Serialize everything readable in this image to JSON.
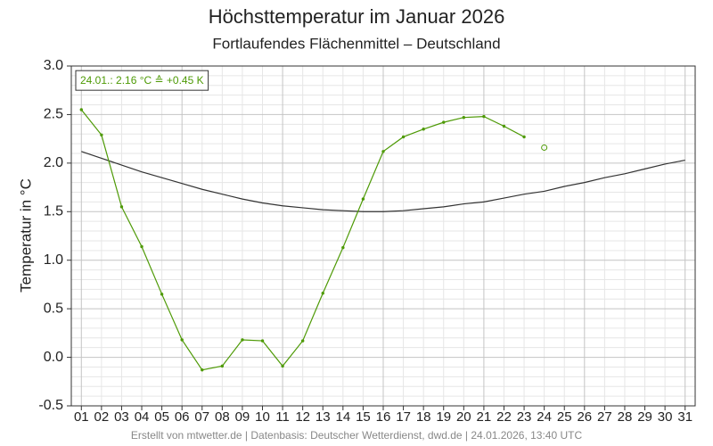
{
  "chart_data": {
    "type": "line",
    "title": "Höchsttemperatur im Januar 2026",
    "subtitle": "Fortlaufendes Flächenmittel – Deutschland",
    "ylabel": "Temperatur in °C",
    "footer": "Erstellt von mtwetter.de | Datenbasis: Deutscher Wetterdienst, dwd.de | 24.01.2026, 13:40 UTC",
    "annotation": "24.01.: 2.16 °C ≙ +0.45 K",
    "categories": [
      "01",
      "02",
      "03",
      "04",
      "05",
      "06",
      "07",
      "08",
      "09",
      "10",
      "11",
      "12",
      "13",
      "14",
      "15",
      "16",
      "17",
      "18",
      "19",
      "20",
      "21",
      "22",
      "23",
      "24",
      "25",
      "26",
      "27",
      "28",
      "29",
      "30",
      "31"
    ],
    "series": [
      {
        "color": "#333333",
        "marker": "none",
        "values": [
          2.12,
          2.05,
          1.98,
          1.91,
          1.85,
          1.79,
          1.73,
          1.68,
          1.63,
          1.59,
          1.56,
          1.54,
          1.52,
          1.51,
          1.5,
          1.5,
          1.51,
          1.53,
          1.55,
          1.58,
          1.6,
          1.64,
          1.68,
          1.71,
          1.76,
          1.8,
          1.85,
          1.89,
          1.94,
          1.99,
          2.03
        ]
      },
      {
        "color": "#4e9a06",
        "marker": "dot",
        "values": [
          2.55,
          2.29,
          1.55,
          1.14,
          0.65,
          0.18,
          -0.13,
          -0.09,
          0.18,
          0.17,
          -0.09,
          0.17,
          0.66,
          1.13,
          1.63,
          2.12,
          2.27,
          2.35,
          2.42,
          2.47,
          2.48,
          2.38,
          2.27,
          null,
          null,
          null,
          null,
          null,
          null,
          null,
          null
        ]
      },
      {
        "color": "#4e9a06",
        "marker": "open",
        "values": [
          null,
          null,
          null,
          null,
          null,
          null,
          null,
          null,
          null,
          null,
          null,
          null,
          null,
          null,
          null,
          null,
          null,
          null,
          null,
          null,
          null,
          null,
          null,
          2.16,
          null,
          null,
          null,
          null,
          null,
          null,
          null
        ]
      }
    ],
    "ylim": [
      -0.5,
      3.0
    ],
    "yticks": [
      -0.5,
      {
        "value": 0,
        "label": "0.0"
      },
      0.5,
      {
        "value": 1,
        "label": "1.0"
      },
      1.5,
      {
        "value": 2,
        "label": "2.0"
      },
      2.5,
      {
        "value": 3,
        "label": "3.0"
      }
    ],
    "grid": true
  }
}
